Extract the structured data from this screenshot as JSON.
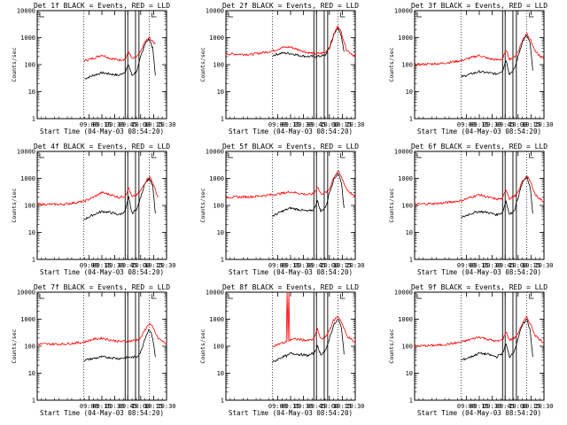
{
  "colors": {
    "events": "#000000",
    "lld": "#ff0000",
    "background": "#ffffff",
    "axis": "#000000"
  },
  "chart_data": [
    {
      "type": "line",
      "title": "Det 1f BLACK = Events, RED = LLD",
      "xlabel": "Start Time (04-May-03 08:54:20)",
      "ylabel": "Counts/sec",
      "xlim": [
        "08:00",
        "10:30"
      ],
      "ylim": [
        1,
        10000
      ],
      "yscale": "log",
      "xticks": [
        "09:00",
        "09:15",
        "09:30",
        "09:45",
        "10:00",
        "10:15",
        "10:30"
      ],
      "yticks": [
        "1",
        "10",
        "100",
        "1000",
        "10000"
      ],
      "dotted_vlines": [
        "08:54",
        "10:10"
      ],
      "solid_vlines": [
        "09:42",
        "09:45",
        "09:54",
        "09:58"
      ],
      "series": [
        {
          "name": "Events",
          "color": "#000000",
          "x": [
            "08:55",
            "09:05",
            "09:15",
            "09:25",
            "09:35",
            "09:42",
            "09:46",
            "09:50",
            "09:56",
            "10:00",
            "10:05",
            "10:10",
            "10:14",
            "10:17"
          ],
          "y": [
            30,
            40,
            50,
            45,
            40,
            55,
            100,
            40,
            60,
            200,
            600,
            900,
            400,
            40
          ]
        },
        {
          "name": "LLD",
          "color": "#ff0000",
          "x": [
            "08:54",
            "09:05",
            "09:15",
            "09:25",
            "09:35",
            "09:42",
            "09:46",
            "09:50",
            "09:56",
            "10:00",
            "10:05",
            "10:10",
            "10:14",
            "10:17"
          ],
          "y": [
            140,
            170,
            230,
            170,
            150,
            160,
            300,
            160,
            200,
            300,
            700,
            1000,
            700,
            600
          ]
        }
      ]
    },
    {
      "type": "line",
      "title": "Det 2f BLACK = Events, RED = LLD",
      "xlabel": "Start Time (04-May-03 08:54:20)",
      "ylabel": "Counts/sec",
      "xlim": [
        "08:00",
        "10:30"
      ],
      "ylim": [
        1,
        10000
      ],
      "yscale": "log",
      "xticks": [
        "09:00",
        "09:15",
        "09:30",
        "09:45",
        "10:00",
        "10:15",
        "10:30"
      ],
      "yticks": [
        "1",
        "10",
        "100",
        "1000",
        "10000"
      ],
      "dotted_vlines": [
        "08:54",
        "10:10"
      ],
      "solid_vlines": [
        "09:42",
        "09:45",
        "09:54",
        "09:58"
      ],
      "series": [
        {
          "name": "Events",
          "color": "#000000",
          "x": [
            "08:54",
            "09:05",
            "09:15",
            "09:25",
            "09:35",
            "09:45",
            "09:55",
            "10:00",
            "10:05",
            "10:10",
            "10:14",
            "10:17"
          ],
          "y": [
            220,
            270,
            260,
            220,
            200,
            200,
            220,
            400,
            1200,
            2500,
            1000,
            300
          ]
        },
        {
          "name": "LLD",
          "color": "#ff0000",
          "x": [
            "08:00",
            "08:30",
            "08:54",
            "09:05",
            "09:15",
            "09:25",
            "09:35",
            "09:45",
            "09:55",
            "10:00",
            "10:05",
            "10:10",
            "10:14",
            "10:20",
            "10:30"
          ],
          "y": [
            250,
            240,
            320,
            430,
            450,
            350,
            280,
            250,
            280,
            450,
            1300,
            2800,
            1500,
            350,
            200
          ]
        }
      ]
    },
    {
      "type": "line",
      "title": "Det 3f BLACK = Events, RED = LLD",
      "xlabel": "Start Time (04-May-03 08:54:20)",
      "ylabel": "Counts/sec",
      "xlim": [
        "08:00",
        "10:30"
      ],
      "ylim": [
        1,
        10000
      ],
      "yscale": "log",
      "xticks": [
        "09:00",
        "09:15",
        "09:30",
        "09:45",
        "10:00",
        "10:15",
        "10:30"
      ],
      "yticks": [
        "1",
        "10",
        "100",
        "1000",
        "10000"
      ],
      "dotted_vlines": [
        "08:54",
        "10:10"
      ],
      "solid_vlines": [
        "09:42",
        "09:45",
        "09:54",
        "09:58"
      ],
      "series": [
        {
          "name": "Events",
          "color": "#000000",
          "x": [
            "08:54",
            "09:05",
            "09:15",
            "09:25",
            "09:35",
            "09:42",
            "09:46",
            "09:50",
            "09:56",
            "10:00",
            "10:05",
            "10:10",
            "10:14",
            "10:17"
          ],
          "y": [
            35,
            45,
            55,
            50,
            45,
            60,
            150,
            45,
            70,
            200,
            700,
            1200,
            600,
            60
          ]
        },
        {
          "name": "LLD",
          "color": "#ff0000",
          "x": [
            "08:00",
            "08:30",
            "08:54",
            "09:05",
            "09:15",
            "09:25",
            "09:35",
            "09:42",
            "09:46",
            "09:50",
            "09:56",
            "10:00",
            "10:05",
            "10:10",
            "10:14",
            "10:20",
            "10:30"
          ],
          "y": [
            100,
            110,
            140,
            180,
            220,
            170,
            150,
            160,
            350,
            160,
            200,
            300,
            800,
            1500,
            900,
            300,
            150
          ]
        }
      ]
    },
    {
      "type": "line",
      "title": "Det 4f BLACK = Events, RED = LLD",
      "xlabel": "Start Time (04-May-03 08:54:20)",
      "ylabel": "Counts/sec",
      "xlim": [
        "08:00",
        "10:30"
      ],
      "ylim": [
        1,
        10000
      ],
      "yscale": "log",
      "xticks": [
        "09:00",
        "09:15",
        "09:30",
        "09:45",
        "10:00",
        "10:15",
        "10:30"
      ],
      "yticks": [
        "1",
        "10",
        "100",
        "1000",
        "10000"
      ],
      "dotted_vlines": [
        "08:54",
        "10:10"
      ],
      "solid_vlines": [
        "09:42",
        "09:45",
        "09:54",
        "09:58"
      ],
      "series": [
        {
          "name": "Events",
          "color": "#000000",
          "x": [
            "08:54",
            "09:05",
            "09:15",
            "09:25",
            "09:35",
            "09:42",
            "09:46",
            "09:50",
            "09:56",
            "10:00",
            "10:05",
            "10:10",
            "10:14",
            "10:17"
          ],
          "y": [
            30,
            45,
            60,
            55,
            45,
            60,
            200,
            50,
            80,
            200,
            700,
            1000,
            500,
            50
          ]
        },
        {
          "name": "LLD",
          "color": "#ff0000",
          "x": [
            "08:00",
            "08:30",
            "08:54",
            "09:05",
            "09:15",
            "09:25",
            "09:35",
            "09:42",
            "09:46",
            "09:50",
            "09:56",
            "10:00",
            "10:05",
            "10:10",
            "10:14",
            "10:20"
          ],
          "y": [
            110,
            110,
            140,
            200,
            300,
            250,
            200,
            220,
            450,
            200,
            250,
            350,
            700,
            1200,
            700,
            200
          ]
        }
      ]
    },
    {
      "type": "line",
      "title": "Det 5f BLACK = Events, RED = LLD",
      "xlabel": "Start Time (04-May-03 08:54:20)",
      "ylabel": "Counts/sec",
      "xlim": [
        "08:00",
        "10:30"
      ],
      "ylim": [
        1,
        10000
      ],
      "yscale": "log",
      "xticks": [
        "09:00",
        "09:15",
        "09:30",
        "09:45",
        "10:00",
        "10:15",
        "10:30"
      ],
      "yticks": [
        "1",
        "10",
        "100",
        "1000",
        "10000"
      ],
      "dotted_vlines": [
        "08:54",
        "10:10"
      ],
      "solid_vlines": [
        "09:42",
        "09:45",
        "09:54",
        "09:58"
      ],
      "series": [
        {
          "name": "Events",
          "color": "#000000",
          "x": [
            "08:54",
            "09:05",
            "09:15",
            "09:25",
            "09:35",
            "09:42",
            "09:46",
            "09:50",
            "09:56",
            "10:00",
            "10:05",
            "10:10",
            "10:14",
            "10:17"
          ],
          "y": [
            40,
            60,
            80,
            70,
            60,
            70,
            150,
            60,
            90,
            300,
            900,
            1600,
            700,
            80
          ]
        },
        {
          "name": "LLD",
          "color": "#ff0000",
          "x": [
            "08:00",
            "08:30",
            "08:54",
            "09:05",
            "09:15",
            "09:25",
            "09:35",
            "09:42",
            "09:46",
            "09:50",
            "09:56",
            "10:00",
            "10:05",
            "10:10",
            "10:14",
            "10:20",
            "10:30"
          ],
          "y": [
            200,
            210,
            250,
            280,
            320,
            280,
            250,
            270,
            500,
            270,
            300,
            400,
            1100,
            1900,
            1100,
            400,
            200
          ]
        }
      ]
    },
    {
      "type": "line",
      "title": "Det 6f BLACK = Events, RED = LLD",
      "xlabel": "Start Time (04-May-03 08:54:20)",
      "ylabel": "Counts/sec",
      "xlim": [
        "08:00",
        "10:30"
      ],
      "ylim": [
        1,
        10000
      ],
      "yscale": "log",
      "xticks": [
        "09:00",
        "09:15",
        "09:30",
        "09:45",
        "10:00",
        "10:15",
        "10:30"
      ],
      "yticks": [
        "1",
        "10",
        "100",
        "1000",
        "10000"
      ],
      "dotted_vlines": [
        "08:54",
        "10:10"
      ],
      "solid_vlines": [
        "09:42",
        "09:45",
        "09:54",
        "09:58"
      ],
      "series": [
        {
          "name": "Events",
          "color": "#000000",
          "x": [
            "08:54",
            "09:05",
            "09:15",
            "09:25",
            "09:35",
            "09:42",
            "09:46",
            "09:50",
            "09:56",
            "10:00",
            "10:05",
            "10:10",
            "10:14",
            "10:17"
          ],
          "y": [
            35,
            50,
            60,
            55,
            45,
            55,
            150,
            45,
            70,
            200,
            700,
            1100,
            500,
            50
          ]
        },
        {
          "name": "LLD",
          "color": "#ff0000",
          "x": [
            "08:00",
            "08:30",
            "08:54",
            "09:05",
            "09:15",
            "09:25",
            "09:35",
            "09:42",
            "09:46",
            "09:50",
            "09:56",
            "10:00",
            "10:05",
            "10:10",
            "10:14",
            "10:20",
            "10:30"
          ],
          "y": [
            110,
            120,
            150,
            200,
            250,
            200,
            170,
            180,
            400,
            180,
            220,
            300,
            800,
            1200,
            800,
            250,
            130
          ]
        }
      ]
    },
    {
      "type": "line",
      "title": "Det 7f BLACK = Events, RED = LLD",
      "xlabel": "Start Time (04-May-03 08:54:20)",
      "ylabel": "Counts/sec",
      "xlim": [
        "08:00",
        "10:30"
      ],
      "ylim": [
        1,
        10000
      ],
      "yscale": "log",
      "xticks": [
        "09:00",
        "09:15",
        "09:30",
        "09:45",
        "10:00",
        "10:15",
        "10:30"
      ],
      "yticks": [
        "1",
        "10",
        "100",
        "1000",
        "10000"
      ],
      "dotted_vlines": [
        "08:54",
        "10:10"
      ],
      "solid_vlines": [
        "09:42",
        "09:45",
        "09:54",
        "09:58"
      ],
      "series": [
        {
          "name": "Events",
          "color": "#000000",
          "x": [
            "08:54",
            "09:05",
            "09:15",
            "09:25",
            "09:35",
            "09:45",
            "09:55",
            "10:00",
            "10:05",
            "10:10",
            "10:14",
            "10:17"
          ],
          "y": [
            30,
            35,
            40,
            38,
            35,
            38,
            40,
            60,
            200,
            450,
            200,
            40
          ]
        },
        {
          "name": "LLD",
          "color": "#ff0000",
          "x": [
            "08:00",
            "08:30",
            "08:54",
            "09:05",
            "09:15",
            "09:25",
            "09:35",
            "09:45",
            "09:55",
            "10:00",
            "10:05",
            "10:10",
            "10:14",
            "10:20",
            "10:30"
          ],
          "y": [
            120,
            120,
            140,
            180,
            200,
            170,
            150,
            150,
            170,
            200,
            400,
            700,
            500,
            200,
            120
          ]
        }
      ]
    },
    {
      "type": "line",
      "title": "Det 8f BLACK = Events, RED = LLD",
      "xlabel": "Start Time (04-May-03 08:54:20)",
      "ylabel": "Counts/sec",
      "xlim": [
        "08:00",
        "10:30"
      ],
      "ylim": [
        1,
        10000
      ],
      "yscale": "log",
      "xticks": [
        "09:00",
        "09:15",
        "09:30",
        "09:45",
        "10:00",
        "10:15",
        "10:30"
      ],
      "yticks": [
        "1",
        "10",
        "100",
        "1000",
        "10000"
      ],
      "dotted_vlines": [
        "08:54",
        "10:10"
      ],
      "solid_vlines": [
        "09:42",
        "09:45",
        "09:54",
        "09:58"
      ],
      "series": [
        {
          "name": "Events",
          "color": "#000000",
          "x": [
            "08:54",
            "09:05",
            "09:12",
            "09:15",
            "09:25",
            "09:35",
            "09:42",
            "09:46",
            "09:50",
            "09:56",
            "10:00",
            "10:05",
            "10:10",
            "10:14",
            "10:17"
          ],
          "y": [
            25,
            40,
            45,
            55,
            50,
            45,
            55,
            100,
            50,
            70,
            200,
            600,
            1000,
            500,
            50
          ]
        },
        {
          "name": "LLD",
          "color": "#ff0000",
          "x": [
            "08:54",
            "09:05",
            "09:10",
            "09:11",
            "09:12",
            "09:13",
            "09:14",
            "09:15",
            "09:25",
            "09:35",
            "09:42",
            "09:46",
            "09:50",
            "09:56",
            "10:00",
            "10:05",
            "10:10",
            "10:14",
            "10:20",
            "10:30"
          ],
          "y": [
            100,
            130,
            140,
            10000,
            150,
            10000,
            160,
            180,
            180,
            160,
            180,
            450,
            180,
            220,
            400,
            900,
            1300,
            800,
            250,
            130
          ]
        }
      ]
    },
    {
      "type": "line",
      "title": "Det 9f BLACK = Events, RED = LLD",
      "xlabel": "Start Time (04-May-03 08:54:20)",
      "ylabel": "Counts/sec",
      "xlim": [
        "08:00",
        "10:30"
      ],
      "ylim": [
        1,
        10000
      ],
      "yscale": "log",
      "xticks": [
        "09:00",
        "09:15",
        "09:30",
        "09:45",
        "10:00",
        "10:15",
        "10:30"
      ],
      "yticks": [
        "1",
        "10",
        "100",
        "1000",
        "10000"
      ],
      "dotted_vlines": [
        "08:54",
        "10:10"
      ],
      "solid_vlines": [
        "09:42",
        "09:45",
        "09:54",
        "09:58"
      ],
      "series": [
        {
          "name": "Events",
          "color": "#000000",
          "x": [
            "08:54",
            "09:05",
            "09:15",
            "09:25",
            "09:35",
            "09:42",
            "09:46",
            "09:50",
            "09:56",
            "10:00",
            "10:05",
            "10:10",
            "10:14",
            "10:17"
          ],
          "y": [
            30,
            40,
            55,
            50,
            40,
            55,
            120,
            40,
            70,
            200,
            600,
            1000,
            400,
            40
          ]
        },
        {
          "name": "LLD",
          "color": "#ff0000",
          "x": [
            "08:00",
            "08:30",
            "08:54",
            "09:05",
            "09:15",
            "09:25",
            "09:35",
            "09:42",
            "09:46",
            "09:50",
            "09:56",
            "10:00",
            "10:05",
            "10:10",
            "10:14",
            "10:20",
            "10:30"
          ],
          "y": [
            100,
            110,
            140,
            180,
            220,
            180,
            150,
            170,
            350,
            170,
            200,
            300,
            700,
            1200,
            700,
            250,
            130
          ]
        }
      ]
    }
  ]
}
